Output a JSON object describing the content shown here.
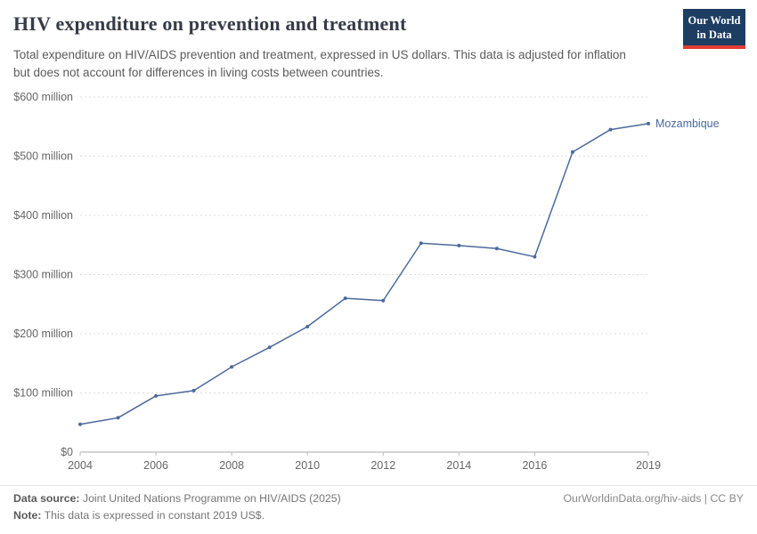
{
  "header": {
    "logo": {
      "line1": "Our World",
      "line2": "in Data",
      "bg_color": "#1d3d63",
      "accent_color": "#e23d33"
    }
  },
  "chart_data": {
    "type": "line",
    "title": "HIV expenditure on prevention and treatment",
    "subtitle": "Total expenditure on HIV/AIDS prevention and treatment, expressed in US dollars. This data is adjusted for inflation but does not account for differences in living costs between countries.",
    "unit": "US$, constant 2019",
    "x": [
      2004,
      2005,
      2006,
      2007,
      2008,
      2009,
      2010,
      2011,
      2012,
      2013,
      2014,
      2015,
      2016,
      2017,
      2018,
      2019
    ],
    "series": [
      {
        "name": "Mozambique",
        "color": "#4c6a9c",
        "values": [
          47,
          58,
          95,
          104,
          144,
          177,
          212,
          260,
          256,
          353,
          349,
          344,
          330,
          507,
          545,
          555
        ]
      }
    ],
    "x_ticks": [
      2004,
      2006,
      2008,
      2010,
      2012,
      2014,
      2016,
      2019
    ],
    "y_ticks": [
      0,
      100,
      200,
      300,
      400,
      500,
      600
    ],
    "y_tick_labels": [
      "$0",
      "$100 million",
      "$200 million",
      "$300 million",
      "$400 million",
      "$500 million",
      "$600 million"
    ],
    "xlim": [
      2004,
      2019
    ],
    "ylim": [
      0,
      600
    ],
    "grid": "horizontal-dashed",
    "legend": "end-of-line-label",
    "colors": {
      "grid": "#dcdcdc",
      "baseline": "#a8a8a8",
      "axis_text": "#666666"
    }
  },
  "footer": {
    "source_label": "Data source:",
    "source_text": " Joint United Nations Programme on HIV/AIDS (2025)",
    "note_label": "Note:",
    "note_text": " This data is expressed in constant 2019 US$.",
    "credit": "OurWorldinData.org/hiv-aids | CC BY"
  }
}
